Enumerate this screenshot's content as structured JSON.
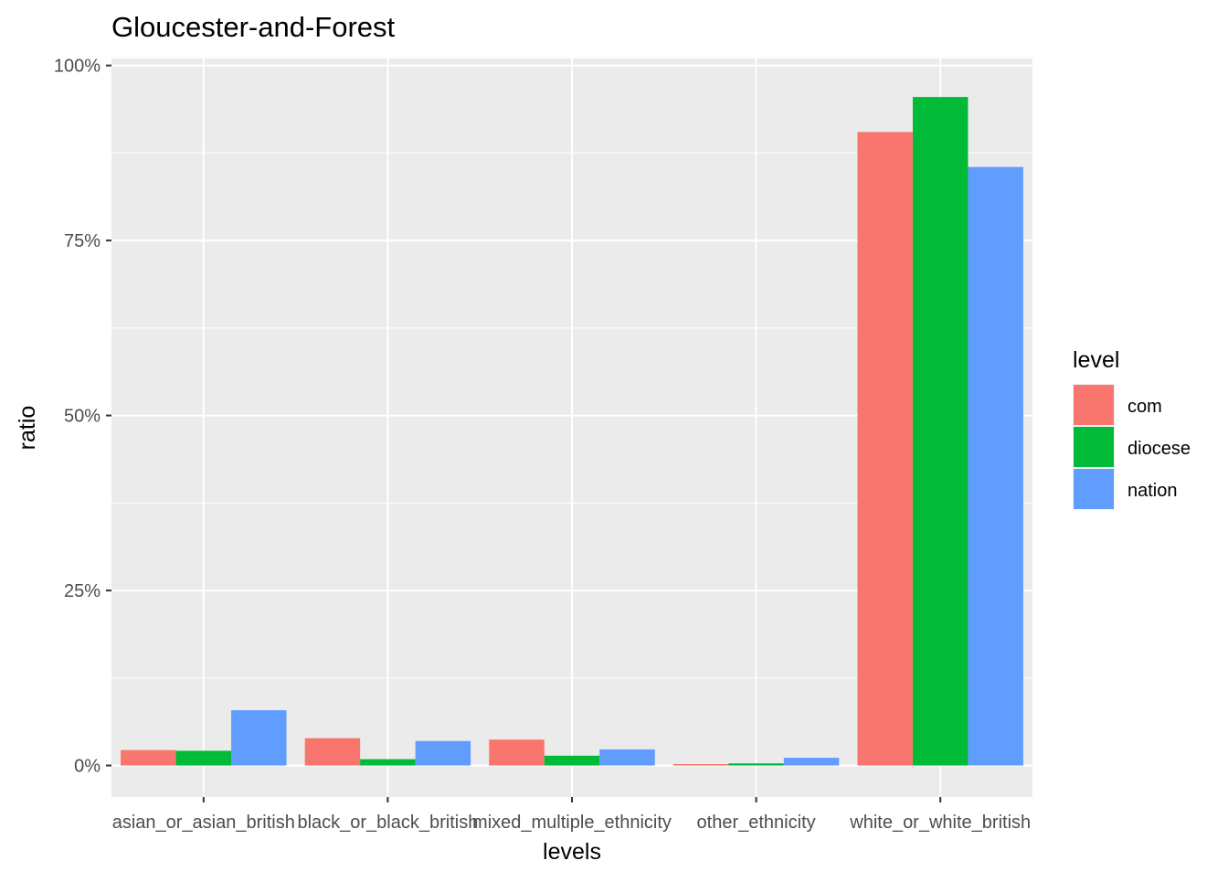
{
  "chart_data": {
    "type": "bar",
    "title": "Gloucester-and-Forest",
    "xlabel": "levels",
    "ylabel": "ratio",
    "ylim": [
      -0.045,
      1.01
    ],
    "yticks": [
      0,
      0.25,
      0.5,
      0.75,
      1.0
    ],
    "ytick_labels": [
      "0%",
      "25%",
      "50%",
      "75%",
      "100%"
    ],
    "categories": [
      "asian_or_asian_british",
      "black_or_black_british",
      "mixed_multiple_ethnicity",
      "other_ethnicity",
      "white_or_white_british"
    ],
    "series": [
      {
        "name": "com",
        "color": "#F8766D",
        "values": [
          0.022,
          0.039,
          0.037,
          0.002,
          0.905
        ]
      },
      {
        "name": "diocese",
        "color": "#00BA38",
        "values": [
          0.021,
          0.009,
          0.014,
          0.003,
          0.955
        ]
      },
      {
        "name": "nation",
        "color": "#619CFF",
        "values": [
          0.079,
          0.035,
          0.023,
          0.011,
          0.855
        ]
      }
    ],
    "legend": {
      "title": "level",
      "position": "right"
    },
    "grid": true,
    "panel_background": "#EBEBEB",
    "grid_color": "#FFFFFF"
  }
}
